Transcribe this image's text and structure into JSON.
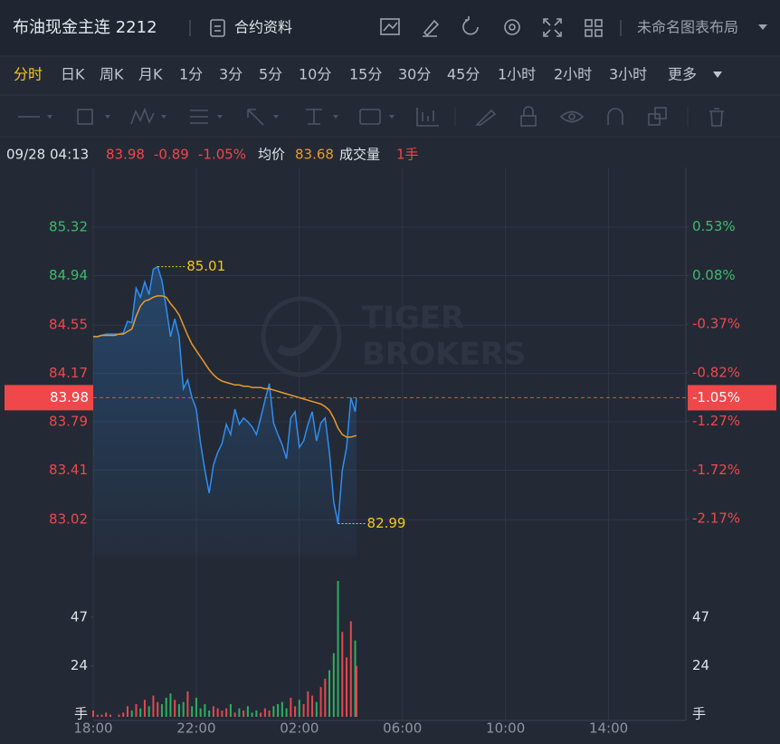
{
  "header": {
    "title": "布油现金主连 2212",
    "contract_info": "合约资料",
    "layout_name": "未命名图表布局"
  },
  "tabs": [
    "分时",
    "日K",
    "周K",
    "月K",
    "1分",
    "3分",
    "5分",
    "10分",
    "15分",
    "30分",
    "45分",
    "1小时",
    "2小时",
    "3小时",
    "更多"
  ],
  "active_tab": 0,
  "info": {
    "time": "09/28 04:13",
    "price": "83.98",
    "change": "-0.89",
    "change_pct": "-1.05%",
    "avg_label": "均价",
    "avg": "83.68",
    "volume_label": "成交量",
    "volume": "1手"
  },
  "chart_data": {
    "type": "line",
    "x": [
      0,
      10,
      20,
      30,
      40,
      50,
      60,
      70,
      80,
      90,
      100,
      110,
      120,
      130,
      140,
      150,
      160,
      170,
      180,
      190,
      200,
      210,
      220,
      230,
      240,
      250,
      260,
      270,
      280,
      290,
      300,
      310,
      320,
      330,
      340,
      350,
      360,
      370,
      380,
      390,
      400,
      410,
      420,
      430,
      440,
      450,
      460,
      470,
      480,
      490,
      500,
      510,
      520,
      530,
      540,
      550,
      560,
      570,
      580,
      590,
      600,
      610,
      613
    ],
    "xlim": [
      0,
      1380
    ],
    "xticks": [
      {
        "value": 0,
        "label": "18:00"
      },
      {
        "value": 240,
        "label": "22:00"
      },
      {
        "value": 480,
        "label": "02:00"
      },
      {
        "value": 720,
        "label": "06:00"
      },
      {
        "value": 960,
        "label": "10:00"
      },
      {
        "value": 1200,
        "label": "14:00"
      }
    ],
    "ylim": [
      82.73,
      85.79
    ],
    "yticks": [
      85.32,
      84.94,
      84.55,
      84.17,
      83.79,
      83.41,
      83.02
    ],
    "y2lim": [
      -2.52,
      1.08
    ],
    "y2ticks": [
      {
        "value": 0.53,
        "label": "0.53%"
      },
      {
        "value": 0.08,
        "label": "0.08%"
      },
      {
        "value": -0.37,
        "label": "-0.37%"
      },
      {
        "value": -0.82,
        "label": "-0.82%"
      },
      {
        "value": -1.27,
        "label": "-1.27%"
      },
      {
        "value": -1.72,
        "label": "-1.72%"
      },
      {
        "value": -2.17,
        "label": "-2.17%"
      }
    ],
    "series": [
      {
        "color": "#2f8ef0",
        "values": [
          84.46,
          84.46,
          84.47,
          84.48,
          84.48,
          84.48,
          84.48,
          84.49,
          84.58,
          84.57,
          84.84,
          84.77,
          84.89,
          84.79,
          84.99,
          85.01,
          84.9,
          84.69,
          84.46,
          84.6,
          84.46,
          84.05,
          84.12,
          83.98,
          83.89,
          83.62,
          83.41,
          83.23,
          83.45,
          83.55,
          83.62,
          83.77,
          83.69,
          83.89,
          83.77,
          83.82,
          83.79,
          83.75,
          83.69,
          83.82,
          83.96,
          84.09,
          83.78,
          83.69,
          83.61,
          83.5,
          83.82,
          83.87,
          83.59,
          83.64,
          83.77,
          83.87,
          83.64,
          83.78,
          83.82,
          83.55,
          83.16,
          82.99,
          83.41,
          83.59,
          83.98,
          83.87,
          83.98
        ]
      },
      {
        "color": "#e89a2c",
        "values": [
          84.46,
          84.46,
          84.47,
          84.47,
          84.47,
          84.47,
          84.48,
          84.48,
          84.5,
          84.52,
          84.62,
          84.7,
          84.74,
          84.75,
          84.77,
          84.78,
          84.78,
          84.77,
          84.72,
          84.68,
          84.63,
          84.55,
          84.47,
          84.4,
          84.35,
          84.3,
          84.25,
          84.2,
          84.16,
          84.13,
          84.11,
          84.1,
          84.09,
          84.08,
          84.08,
          84.07,
          84.07,
          84.06,
          84.06,
          84.06,
          84.05,
          84.05,
          84.04,
          84.03,
          84.02,
          84.01,
          84.0,
          83.99,
          83.98,
          83.97,
          83.96,
          83.95,
          83.94,
          83.93,
          83.91,
          83.88,
          83.82,
          83.74,
          83.69,
          83.67,
          83.67,
          83.68,
          83.68
        ]
      }
    ],
    "current": {
      "value": 83.98,
      "change": {
        "value": -1.05,
        "label": "-1.05%"
      }
    },
    "max_annotation": {
      "x": 150,
      "value": 85.01
    },
    "min_annotation": {
      "x": 570,
      "value": 82.99
    },
    "watermark": [
      "TIGER",
      "BROKERS"
    ],
    "volume": {
      "values": [
        3,
        1,
        1,
        2,
        1,
        0,
        1,
        2,
        5,
        3,
        6,
        4,
        8,
        5,
        10,
        7,
        6,
        9,
        11,
        8,
        6,
        7,
        12,
        5,
        9,
        4,
        6,
        3,
        5,
        4,
        3,
        4,
        6,
        2,
        4,
        3,
        5,
        2,
        3,
        2,
        4,
        3,
        5,
        6,
        7,
        4,
        9,
        5,
        8,
        6,
        12,
        10,
        7,
        14,
        18,
        22,
        30,
        64,
        40,
        28,
        45,
        36,
        24
      ],
      "ylim": [
        0,
        65
      ],
      "yticks": [
        47,
        24
      ],
      "unit": "手",
      "up_color": "#e5484d",
      "down_color": "#2fae60"
    },
    "up_color": "#3dbb6a",
    "down_color": "#f0474a",
    "grid": true
  }
}
